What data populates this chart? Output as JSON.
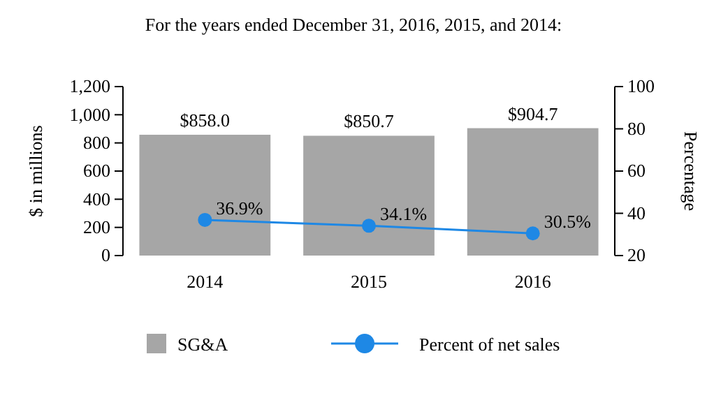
{
  "chart_data": {
    "type": "bar",
    "title": "For the years ended December 31, 2016, 2015, and 2014:",
    "ylabel": "$ in millions",
    "y2label": "Percentage",
    "categories": [
      "2014",
      "2015",
      "2016"
    ],
    "series": [
      {
        "name": "SG&A",
        "color": "#a6a6a6",
        "values": [
          858.0,
          850.7,
          904.7
        ],
        "value_labels": [
          "$858.0",
          "$850.7",
          "$904.7"
        ]
      },
      {
        "name": "Percent of net sales",
        "type": "line",
        "axis": "y2",
        "color": "#1e88e5",
        "marker": "circle",
        "values": [
          36.9,
          34.1,
          30.5
        ],
        "value_labels": [
          "36.9%",
          "34.1%",
          "30.5%"
        ]
      }
    ],
    "ylim": [
      0,
      1200
    ],
    "yticks": [
      {
        "value": 0,
        "label": "0"
      },
      {
        "value": 200,
        "label": "200"
      },
      {
        "value": 400,
        "label": "400"
      },
      {
        "value": 600,
        "label": "600"
      },
      {
        "value": 800,
        "label": "800"
      },
      {
        "value": 1000,
        "label": "1,000"
      },
      {
        "value": 1200,
        "label": "1,200"
      }
    ],
    "y2lim": [
      20,
      100
    ],
    "y2ticks": [
      20,
      40,
      60,
      80,
      100
    ],
    "legend": "bottom",
    "grid": false
  }
}
